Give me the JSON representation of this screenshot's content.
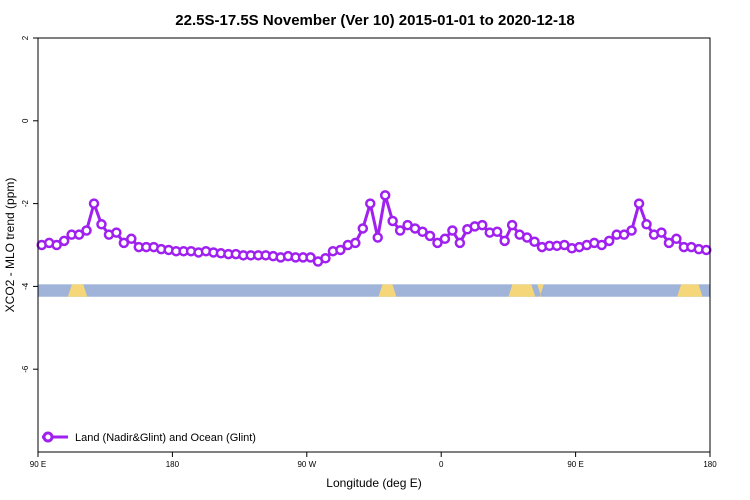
{
  "chart_data": {
    "type": "line",
    "title": "22.5S-17.5S November (Ver 10)   2015-01-01 to 2020-12-18",
    "xlabel": "Longitude (deg E)",
    "ylabel": "XCO2 - MLO trend (ppm)",
    "xlim": [
      90,
      540
    ],
    "ylim": [
      -8,
      2
    ],
    "x_ticks": [
      {
        "value": 90,
        "label": "90 E"
      },
      {
        "value": 180,
        "label": "180"
      },
      {
        "value": 270,
        "label": "90 W"
      },
      {
        "value": 360,
        "label": "0"
      },
      {
        "value": 450,
        "label": "90 E"
      },
      {
        "value": 540,
        "label": "180"
      }
    ],
    "y_ticks": [
      {
        "value": 2,
        "label": "2"
      },
      {
        "value": 0,
        "label": "0"
      },
      {
        "value": -2,
        "label": "-2"
      },
      {
        "value": -4,
        "label": "-4"
      },
      {
        "value": -6,
        "label": "-6"
      }
    ],
    "grid": false,
    "legend_position": "bottom-left",
    "series": [
      {
        "name": "Land (Nadir&Glint) and Ocean (Glint)",
        "color": "#a020f0",
        "marker": "open-circle",
        "x": [
          92.5,
          97.5,
          102.5,
          107.5,
          112.5,
          117.5,
          122.5,
          127.5,
          132.5,
          137.5,
          142.5,
          147.5,
          152.5,
          157.5,
          162.5,
          167.5,
          172.5,
          177.5,
          182.5,
          187.5,
          192.5,
          197.5,
          202.5,
          207.5,
          212.5,
          217.5,
          222.5,
          227.5,
          232.5,
          237.5,
          242.5,
          247.5,
          252.5,
          257.5,
          262.5,
          267.5,
          272.5,
          277.5,
          282.5,
          287.5,
          292.5,
          297.5,
          302.5,
          307.5,
          312.5,
          317.5,
          322.5,
          327.5,
          332.5,
          337.5,
          342.5,
          347.5,
          352.5,
          357.5,
          362.5,
          367.5,
          372.5,
          377.5,
          382.5,
          387.5,
          392.5,
          397.5,
          402.5,
          407.5,
          412.5,
          417.5,
          422.5,
          427.5,
          432.5,
          437.5,
          442.5,
          447.5,
          452.5,
          457.5,
          462.5,
          467.5,
          472.5,
          477.5,
          482.5,
          487.5,
          492.5,
          497.5,
          502.5,
          507.5,
          512.5,
          517.5,
          522.5,
          527.5,
          532.5,
          537.5
        ],
        "y": [
          -3.0,
          -2.95,
          -3.0,
          -2.9,
          -2.75,
          -2.75,
          -2.65,
          -2.0,
          -2.5,
          -2.75,
          -2.7,
          -2.95,
          -2.85,
          -3.05,
          -3.05,
          -3.05,
          -3.1,
          -3.12,
          -3.15,
          -3.15,
          -3.15,
          -3.18,
          -3.15,
          -3.18,
          -3.2,
          -3.22,
          -3.22,
          -3.25,
          -3.25,
          -3.25,
          -3.25,
          -3.27,
          -3.3,
          -3.27,
          -3.3,
          -3.3,
          -3.3,
          -3.4,
          -3.32,
          -3.15,
          -3.12,
          -3.0,
          -2.95,
          -2.6,
          -2.0,
          -2.82,
          -1.8,
          -2.42,
          -2.65,
          -2.52,
          -2.6,
          -2.68,
          -2.78,
          -2.95,
          -2.85,
          -2.65,
          -2.95,
          -2.62,
          -2.55,
          -2.52,
          -2.7,
          -2.68,
          -2.9,
          -2.52,
          -2.75,
          -2.82,
          -2.92,
          -3.05,
          -3.02,
          -3.02,
          -3.0,
          -3.08,
          -3.05,
          -3.0,
          -2.95,
          -3.0,
          -2.9,
          -2.75,
          -2.75,
          -2.65,
          -2.0,
          -2.5,
          -2.75,
          -2.7,
          -2.95,
          -2.85,
          -3.05,
          -3.05,
          -3.1,
          -3.12
        ]
      }
    ],
    "surface_band": {
      "y_range": [
        -4.25,
        -3.95
      ],
      "colors": {
        "ocean": "#9fb4d8",
        "land": "#f5d77a"
      },
      "land_segments": [
        [
          107,
          120
        ],
        [
          110,
          125
        ],
        [
          110,
          122
        ],
        [
          110,
          130
        ],
        [
          109,
          135
        ],
        [
          109,
          128
        ],
        [
          110,
          125
        ],
        [
          111,
          120
        ],
        [
          310,
          326
        ],
        [
          316,
          335
        ],
        [
          318,
          330
        ],
        [
          392,
          410
        ],
        [
          395,
          405
        ],
        [
          402,
          402
        ],
        [
          406,
          409
        ],
        [
          409,
          410
        ],
        [
          412,
          413
        ],
        [
          516,
          526
        ],
        [
          506,
          534
        ]
      ],
      "land_segments_note": ""
    }
  }
}
